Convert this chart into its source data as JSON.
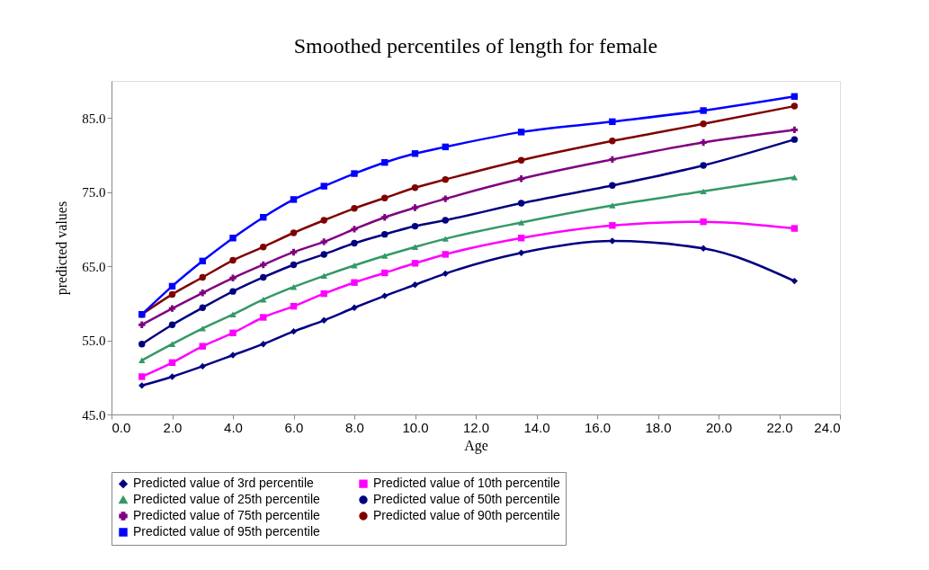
{
  "chart_data": {
    "type": "line",
    "title": "Smoothed percentiles of length for female",
    "xlabel": "Age",
    "ylabel": "predicted values",
    "x": [
      1,
      2,
      3,
      4,
      5,
      6,
      7,
      8,
      9,
      10,
      11,
      13.5,
      16.5,
      19.5,
      22.5
    ],
    "xlim": [
      0,
      24
    ],
    "xticks": [
      {
        "value": 0,
        "label": "0.0"
      },
      {
        "value": 2,
        "label": "2.0"
      },
      {
        "value": 4,
        "label": "4.0"
      },
      {
        "value": 6,
        "label": "6.0"
      },
      {
        "value": 8,
        "label": "8.0"
      },
      {
        "value": 10,
        "label": "10.0"
      },
      {
        "value": 12,
        "label": "12.0"
      },
      {
        "value": 14,
        "label": "14.0"
      },
      {
        "value": 16,
        "label": "16.0"
      },
      {
        "value": 18,
        "label": "18.0"
      },
      {
        "value": 20,
        "label": "20.0"
      },
      {
        "value": 22,
        "label": "22.0"
      },
      {
        "value": 24,
        "label": "24.0"
      }
    ],
    "ylim": [
      45,
      90
    ],
    "yticks": [
      {
        "value": 45,
        "label": "45.0"
      },
      {
        "value": 55,
        "label": "55.0"
      },
      {
        "value": 65,
        "label": "65.0"
      },
      {
        "value": 75,
        "label": "75.0"
      },
      {
        "value": 85,
        "label": "85.0"
      }
    ],
    "grid": false,
    "legend": "bottom",
    "line_style": "solid",
    "series": [
      {
        "name": "Predicted value of 3rd percentile",
        "color": "#000080",
        "marker": "diamond",
        "values": [
          48.9,
          50.1,
          51.5,
          53.0,
          54.5,
          56.2,
          57.7,
          59.4,
          61.0,
          62.5,
          64.0,
          66.8,
          68.4,
          67.4,
          63.0
        ]
      },
      {
        "name": "Predicted value of 10th percentile",
        "color": "#ff00ff",
        "marker": "square",
        "values": [
          50.1,
          52.0,
          54.2,
          56.0,
          58.1,
          59.6,
          61.3,
          62.8,
          64.1,
          65.4,
          66.6,
          68.8,
          70.5,
          71.0,
          70.1
        ]
      },
      {
        "name": "Predicted value of 25th percentile",
        "color": "#339966",
        "marker": "triangle",
        "values": [
          52.3,
          54.5,
          56.6,
          58.5,
          60.5,
          62.2,
          63.7,
          65.1,
          66.4,
          67.6,
          68.7,
          70.9,
          73.2,
          75.1,
          77.0
        ]
      },
      {
        "name": "Predicted value of 50th percentile",
        "color": "#000080",
        "marker": "circle",
        "values": [
          54.5,
          57.1,
          59.4,
          61.6,
          63.5,
          65.2,
          66.6,
          68.1,
          69.3,
          70.4,
          71.2,
          73.5,
          75.9,
          78.6,
          82.1
        ]
      },
      {
        "name": "Predicted value of 75th percentile",
        "color": "#800080",
        "marker": "cross",
        "values": [
          57.1,
          59.3,
          61.4,
          63.4,
          65.2,
          66.9,
          68.3,
          70.0,
          71.6,
          72.9,
          74.1,
          76.8,
          79.4,
          81.7,
          83.4
        ]
      },
      {
        "name": "Predicted value of 90th percentile",
        "color": "#800000",
        "marker": "circle",
        "values": [
          58.5,
          61.2,
          63.5,
          65.8,
          67.6,
          69.5,
          71.2,
          72.8,
          74.2,
          75.6,
          76.7,
          79.3,
          81.9,
          84.2,
          86.6
        ]
      },
      {
        "name": "Predicted value of 95th percentile",
        "color": "#0000ff",
        "marker": "square",
        "values": [
          58.5,
          62.3,
          65.7,
          68.8,
          71.6,
          74.0,
          75.8,
          77.5,
          79.0,
          80.2,
          81.1,
          83.1,
          84.5,
          86.0,
          87.9
        ]
      }
    ]
  }
}
